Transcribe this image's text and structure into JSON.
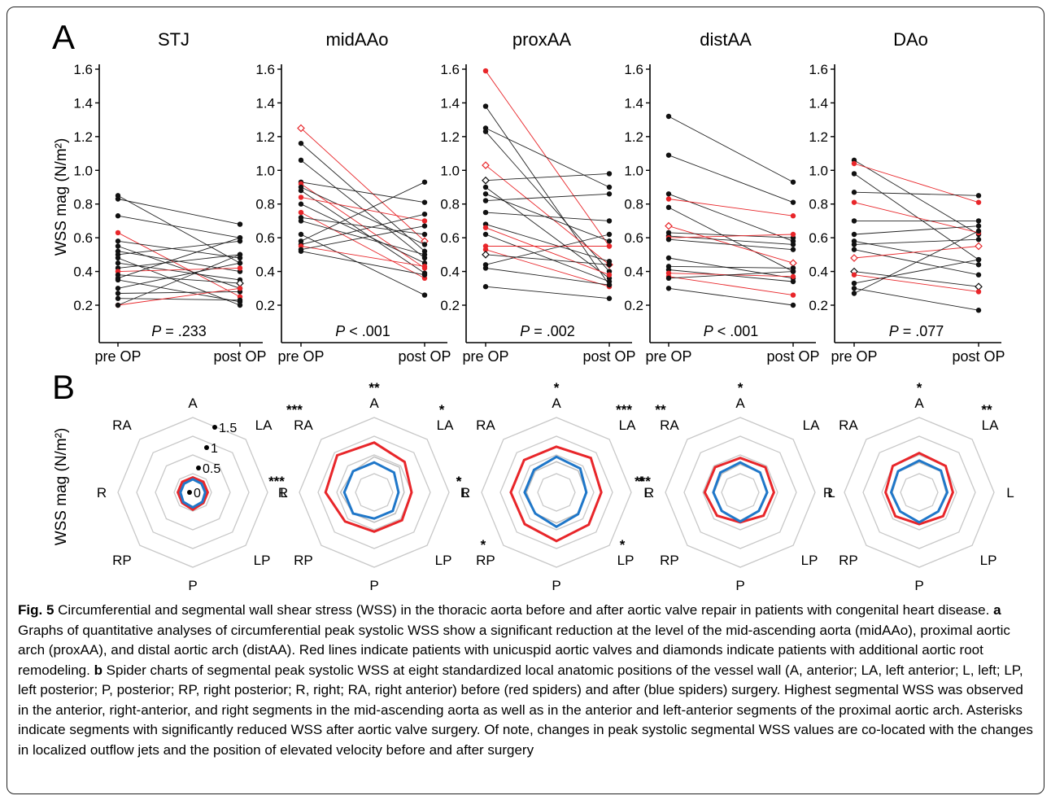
{
  "panel_a_label": "A",
  "panel_b_label": "B",
  "y_label": "WSS mag (N/m²)",
  "radar_y_label": "WSS mag (N/m²)",
  "chart_data": [
    {
      "type": "line",
      "title": "STJ",
      "categories": [
        "pre OP",
        "post OP"
      ],
      "ylim": [
        0.2,
        1.6
      ],
      "yticks": [
        0.2,
        0.4,
        0.6,
        0.8,
        1.0,
        1.2,
        1.4,
        1.6
      ],
      "p_prefix": "P",
      "p_text": " = .233",
      "pairs": [
        {
          "pre": 0.85,
          "post": 0.45,
          "group": "black"
        },
        {
          "pre": 0.83,
          "post": 0.68,
          "group": "black"
        },
        {
          "pre": 0.73,
          "post": 0.6,
          "group": "black"
        },
        {
          "pre": 0.63,
          "post": 0.25,
          "group": "red"
        },
        {
          "pre": 0.58,
          "post": 0.48,
          "group": "black"
        },
        {
          "pre": 0.55,
          "post": 0.3,
          "group": "black"
        },
        {
          "pre": 0.52,
          "post": 0.4,
          "group": "black"
        },
        {
          "pre": 0.5,
          "post": 0.58,
          "group": "black"
        },
        {
          "pre": 0.48,
          "post": 0.2,
          "group": "black"
        },
        {
          "pre": 0.45,
          "post": 0.35,
          "group": "black"
        },
        {
          "pre": 0.42,
          "post": 0.5,
          "group": "black"
        },
        {
          "pre": 0.4,
          "post": 0.42,
          "group": "red"
        },
        {
          "pre": 0.38,
          "post": 0.33,
          "group": "black",
          "diamond_post": true
        },
        {
          "pre": 0.36,
          "post": 0.6,
          "group": "black"
        },
        {
          "pre": 0.35,
          "post": 0.22,
          "group": "black"
        },
        {
          "pre": 0.3,
          "post": 0.45,
          "group": "black"
        },
        {
          "pre": 0.27,
          "post": 0.28,
          "group": "black"
        },
        {
          "pre": 0.24,
          "post": 0.23,
          "group": "black"
        },
        {
          "pre": 0.2,
          "post": 0.3,
          "group": "red"
        },
        {
          "pre": 0.2,
          "post": 0.5,
          "group": "black"
        }
      ]
    },
    {
      "type": "line",
      "title": "midAAo",
      "categories": [
        "pre OP",
        "post OP"
      ],
      "ylim": [
        0.2,
        1.6
      ],
      "yticks": [
        0.2,
        0.4,
        0.6,
        0.8,
        1.0,
        1.2,
        1.4,
        1.6
      ],
      "p_prefix": "P",
      "p_text": " < .001",
      "pairs": [
        {
          "pre": 1.25,
          "post": 0.58,
          "group": "red",
          "diamond_pre": true,
          "diamond_post": true
        },
        {
          "pre": 1.16,
          "post": 0.52,
          "group": "black"
        },
        {
          "pre": 1.06,
          "post": 0.48,
          "group": "black"
        },
        {
          "pre": 0.93,
          "post": 0.81,
          "group": "black"
        },
        {
          "pre": 0.92,
          "post": 0.42,
          "group": "red"
        },
        {
          "pre": 0.9,
          "post": 0.56,
          "group": "black"
        },
        {
          "pre": 0.88,
          "post": 0.39,
          "group": "black"
        },
        {
          "pre": 0.84,
          "post": 0.7,
          "group": "red"
        },
        {
          "pre": 0.8,
          "post": 0.45,
          "group": "black"
        },
        {
          "pre": 0.75,
          "post": 0.36,
          "group": "red"
        },
        {
          "pre": 0.72,
          "post": 0.62,
          "group": "black"
        },
        {
          "pre": 0.7,
          "post": 0.5,
          "group": "black"
        },
        {
          "pre": 0.62,
          "post": 0.26,
          "group": "black"
        },
        {
          "pre": 0.58,
          "post": 0.93,
          "group": "black"
        },
        {
          "pre": 0.56,
          "post": 0.74,
          "group": "black"
        },
        {
          "pre": 0.55,
          "post": 0.43,
          "group": "red"
        },
        {
          "pre": 0.53,
          "post": 0.67,
          "group": "black"
        },
        {
          "pre": 0.52,
          "post": 0.38,
          "group": "black"
        }
      ]
    },
    {
      "type": "line",
      "title": "proxAA",
      "categories": [
        "pre OP",
        "post OP"
      ],
      "ylim": [
        0.2,
        1.6
      ],
      "yticks": [
        0.2,
        0.4,
        0.6,
        0.8,
        1.0,
        1.2,
        1.4,
        1.6
      ],
      "p_prefix": "P",
      "p_text": " = .002",
      "pairs": [
        {
          "pre": 1.59,
          "post": 0.55,
          "group": "red"
        },
        {
          "pre": 1.38,
          "post": 0.32,
          "group": "black"
        },
        {
          "pre": 1.25,
          "post": 0.9,
          "group": "black"
        },
        {
          "pre": 1.23,
          "post": 0.4,
          "group": "black"
        },
        {
          "pre": 1.03,
          "post": 0.44,
          "group": "red",
          "diamond_pre": true,
          "diamond_post": true
        },
        {
          "pre": 0.94,
          "post": 0.98,
          "group": "black",
          "diamond_pre": true
        },
        {
          "pre": 0.9,
          "post": 0.36,
          "group": "black"
        },
        {
          "pre": 0.86,
          "post": 0.58,
          "group": "black"
        },
        {
          "pre": 0.82,
          "post": 0.86,
          "group": "black"
        },
        {
          "pre": 0.75,
          "post": 0.7,
          "group": "black"
        },
        {
          "pre": 0.68,
          "post": 0.46,
          "group": "black"
        },
        {
          "pre": 0.66,
          "post": 0.38,
          "group": "red"
        },
        {
          "pre": 0.62,
          "post": 0.34,
          "group": "black"
        },
        {
          "pre": 0.55,
          "post": 0.55,
          "group": "red"
        },
        {
          "pre": 0.53,
          "post": 0.31,
          "group": "red"
        },
        {
          "pre": 0.5,
          "post": 0.44,
          "group": "black",
          "diamond_pre": true
        },
        {
          "pre": 0.44,
          "post": 0.62,
          "group": "black"
        },
        {
          "pre": 0.42,
          "post": 0.32,
          "group": "black"
        },
        {
          "pre": 0.31,
          "post": 0.24,
          "group": "black"
        }
      ]
    },
    {
      "type": "line",
      "title": "distAA",
      "categories": [
        "pre OP",
        "post OP"
      ],
      "ylim": [
        0.2,
        1.6
      ],
      "yticks": [
        0.2,
        0.4,
        0.6,
        0.8,
        1.0,
        1.2,
        1.4,
        1.6
      ],
      "p_prefix": "P",
      "p_text": " < .001",
      "pairs": [
        {
          "pre": 1.32,
          "post": 0.93,
          "group": "black"
        },
        {
          "pre": 1.09,
          "post": 0.81,
          "group": "black"
        },
        {
          "pre": 0.86,
          "post": 0.58,
          "group": "black"
        },
        {
          "pre": 0.83,
          "post": 0.73,
          "group": "red"
        },
        {
          "pre": 0.78,
          "post": 0.4,
          "group": "black"
        },
        {
          "pre": 0.67,
          "post": 0.45,
          "group": "red",
          "diamond_pre": true,
          "diamond_post": true
        },
        {
          "pre": 0.63,
          "post": 0.6,
          "group": "black"
        },
        {
          "pre": 0.61,
          "post": 0.56,
          "group": "black"
        },
        {
          "pre": 0.6,
          "post": 0.62,
          "group": "red"
        },
        {
          "pre": 0.59,
          "post": 0.53,
          "group": "black"
        },
        {
          "pre": 0.48,
          "post": 0.36,
          "group": "black"
        },
        {
          "pre": 0.43,
          "post": 0.42,
          "group": "black"
        },
        {
          "pre": 0.41,
          "post": 0.34,
          "group": "black"
        },
        {
          "pre": 0.39,
          "post": 0.37,
          "group": "red"
        },
        {
          "pre": 0.37,
          "post": 0.26,
          "group": "red"
        },
        {
          "pre": 0.36,
          "post": 0.4,
          "group": "black"
        },
        {
          "pre": 0.3,
          "post": 0.2,
          "group": "black"
        }
      ]
    },
    {
      "type": "line",
      "title": "DAo",
      "categories": [
        "pre OP",
        "post OP"
      ],
      "ylim": [
        0.2,
        1.6
      ],
      "yticks": [
        0.2,
        0.4,
        0.6,
        0.8,
        1.0,
        1.2,
        1.4,
        1.6
      ],
      "p_prefix": "P",
      "p_text": " = .077",
      "pairs": [
        {
          "pre": 1.06,
          "post": 0.62,
          "group": "black"
        },
        {
          "pre": 1.04,
          "post": 0.81,
          "group": "red"
        },
        {
          "pre": 0.98,
          "post": 0.47,
          "group": "black"
        },
        {
          "pre": 0.87,
          "post": 0.85,
          "group": "black"
        },
        {
          "pre": 0.81,
          "post": 0.63,
          "group": "red"
        },
        {
          "pre": 0.7,
          "post": 0.7,
          "group": "black"
        },
        {
          "pre": 0.62,
          "post": 0.67,
          "group": "black"
        },
        {
          "pre": 0.58,
          "post": 0.44,
          "group": "black"
        },
        {
          "pre": 0.56,
          "post": 0.59,
          "group": "black"
        },
        {
          "pre": 0.53,
          "post": 0.38,
          "group": "black"
        },
        {
          "pre": 0.48,
          "post": 0.55,
          "group": "red",
          "diamond_pre": true,
          "diamond_post": true
        },
        {
          "pre": 0.4,
          "post": 0.31,
          "group": "black",
          "diamond_pre": true,
          "diamond_post": true
        },
        {
          "pre": 0.38,
          "post": 0.28,
          "group": "red"
        },
        {
          "pre": 0.33,
          "post": 0.47,
          "group": "black"
        },
        {
          "pre": 0.3,
          "post": 0.17,
          "group": "black"
        },
        {
          "pre": 0.27,
          "post": 0.64,
          "group": "black"
        }
      ]
    }
  ],
  "radar_data": [
    {
      "axes": [
        "A",
        "LA",
        "L",
        "LP",
        "P",
        "RP",
        "R",
        "RA"
      ],
      "stars": [
        "",
        "",
        "",
        "",
        "",
        "",
        "",
        ""
      ],
      "scale_labels": [
        "0",
        "0.5",
        "1",
        "1.5"
      ],
      "pre": [
        0.4,
        0.4,
        0.4,
        0.4,
        0.46,
        0.4,
        0.4,
        0.4
      ],
      "post": [
        0.35,
        0.33,
        0.33,
        0.36,
        0.4,
        0.36,
        0.33,
        0.33
      ],
      "mean": [
        0.36,
        0.36,
        0.36,
        0.36,
        0.4,
        0.36,
        0.36,
        0.36
      ]
    },
    {
      "axes": [
        "A",
        "LA",
        "L",
        "LP",
        "P",
        "RP",
        "R",
        "RA"
      ],
      "stars": [
        "**",
        "*",
        "*",
        "",
        "*",
        "",
        "***",
        "***"
      ],
      "pre": [
        1.33,
        1.15,
        1.0,
        1.05,
        1.05,
        1.1,
        1.3,
        1.4
      ],
      "post": [
        0.8,
        0.75,
        0.65,
        0.7,
        0.7,
        0.8,
        0.8,
        0.8
      ],
      "mean": [
        0.95,
        0.95,
        0.8,
        0.8,
        0.8,
        0.8,
        0.9,
        0.8
      ]
    },
    {
      "axes": [
        "A",
        "LA",
        "L",
        "LP",
        "P",
        "RP",
        "R",
        "RA"
      ],
      "stars": [
        "*",
        "***",
        "*",
        "*",
        "**",
        "*",
        "*",
        ""
      ],
      "pre": [
        1.22,
        1.3,
        1.2,
        1.22,
        1.3,
        1.2,
        1.22,
        1.22
      ],
      "post": [
        0.95,
        0.9,
        0.8,
        0.82,
        0.92,
        0.8,
        0.85,
        0.85
      ],
      "mean": [
        0.82,
        0.82,
        0.8,
        0.8,
        0.82,
        0.8,
        0.8,
        0.8
      ]
    },
    {
      "axes": [
        "A",
        "LA",
        "L",
        "LP",
        "P",
        "RP",
        "R",
        "RA"
      ],
      "stars": [
        "*",
        "",
        "",
        "",
        "",
        "",
        "***",
        "**"
      ],
      "pre": [
        0.92,
        0.95,
        0.9,
        0.88,
        0.8,
        0.88,
        0.95,
        0.95
      ],
      "post": [
        0.8,
        0.75,
        0.72,
        0.7,
        0.78,
        0.7,
        0.72,
        0.75
      ],
      "mean": [
        0.75,
        0.75,
        0.7,
        0.7,
        0.75,
        0.7,
        0.7,
        0.7
      ]
    },
    {
      "axes": [
        "A",
        "LA",
        "L",
        "LP",
        "P",
        "RP",
        "R",
        "RA"
      ],
      "stars": [
        "*",
        "**",
        "",
        "",
        "",
        "",
        "",
        ""
      ],
      "pre": [
        1.05,
        1.0,
        0.9,
        0.9,
        0.85,
        0.9,
        0.9,
        1.0
      ],
      "post": [
        0.85,
        0.82,
        0.75,
        0.72,
        0.8,
        0.72,
        0.75,
        0.8
      ],
      "mean": [
        0.8,
        0.8,
        0.72,
        0.72,
        0.78,
        0.72,
        0.72,
        0.78
      ]
    }
  ],
  "caption": {
    "fig_label": "Fig. 5",
    "intro": " Circumferential and segmental wall shear stress (WSS) in the thoracic aorta before and after aortic valve repair in patients with congenital heart disease. ",
    "a_label": "a",
    "a_text": " Graphs of quantitative analyses of circumferential peak systolic WSS show a significant reduction at the level of the mid-ascending aorta (midAAo), proximal aortic arch (proxAA), and distal aortic arch (distAA). Red lines indicate patients with unicuspid aortic valves and diamonds indicate patients with additional aortic root remodeling. ",
    "b_label": "b",
    "b_text": " Spider charts of segmental peak systolic WSS at eight standardized local anatomic positions of the vessel wall (A, anterior; LA, left anterior; L, left; LP, left posterior; P, posterior; RP, right posterior; R, right; RA, right anterior) before (red spiders) and after (blue spiders) surgery. Highest segmental WSS was observed in the anterior, right-anterior, and right segments in the mid-ascending aorta as well as in the anterior and left-anterior segments of the proximal aortic arch. Asterisks indicate segments with significantly reduced WSS after aortic valve surgery. Of note, changes in peak systolic segmental WSS values are co-located with the changes in localized outflow jets and the position of elevated velocity before and after surgery"
  },
  "colors": {
    "red": "#e8262a",
    "blue": "#1f77c9",
    "black": "#111111",
    "grid_gray": "#c8c8c8",
    "mean_gray": "#bdbdbd"
  }
}
